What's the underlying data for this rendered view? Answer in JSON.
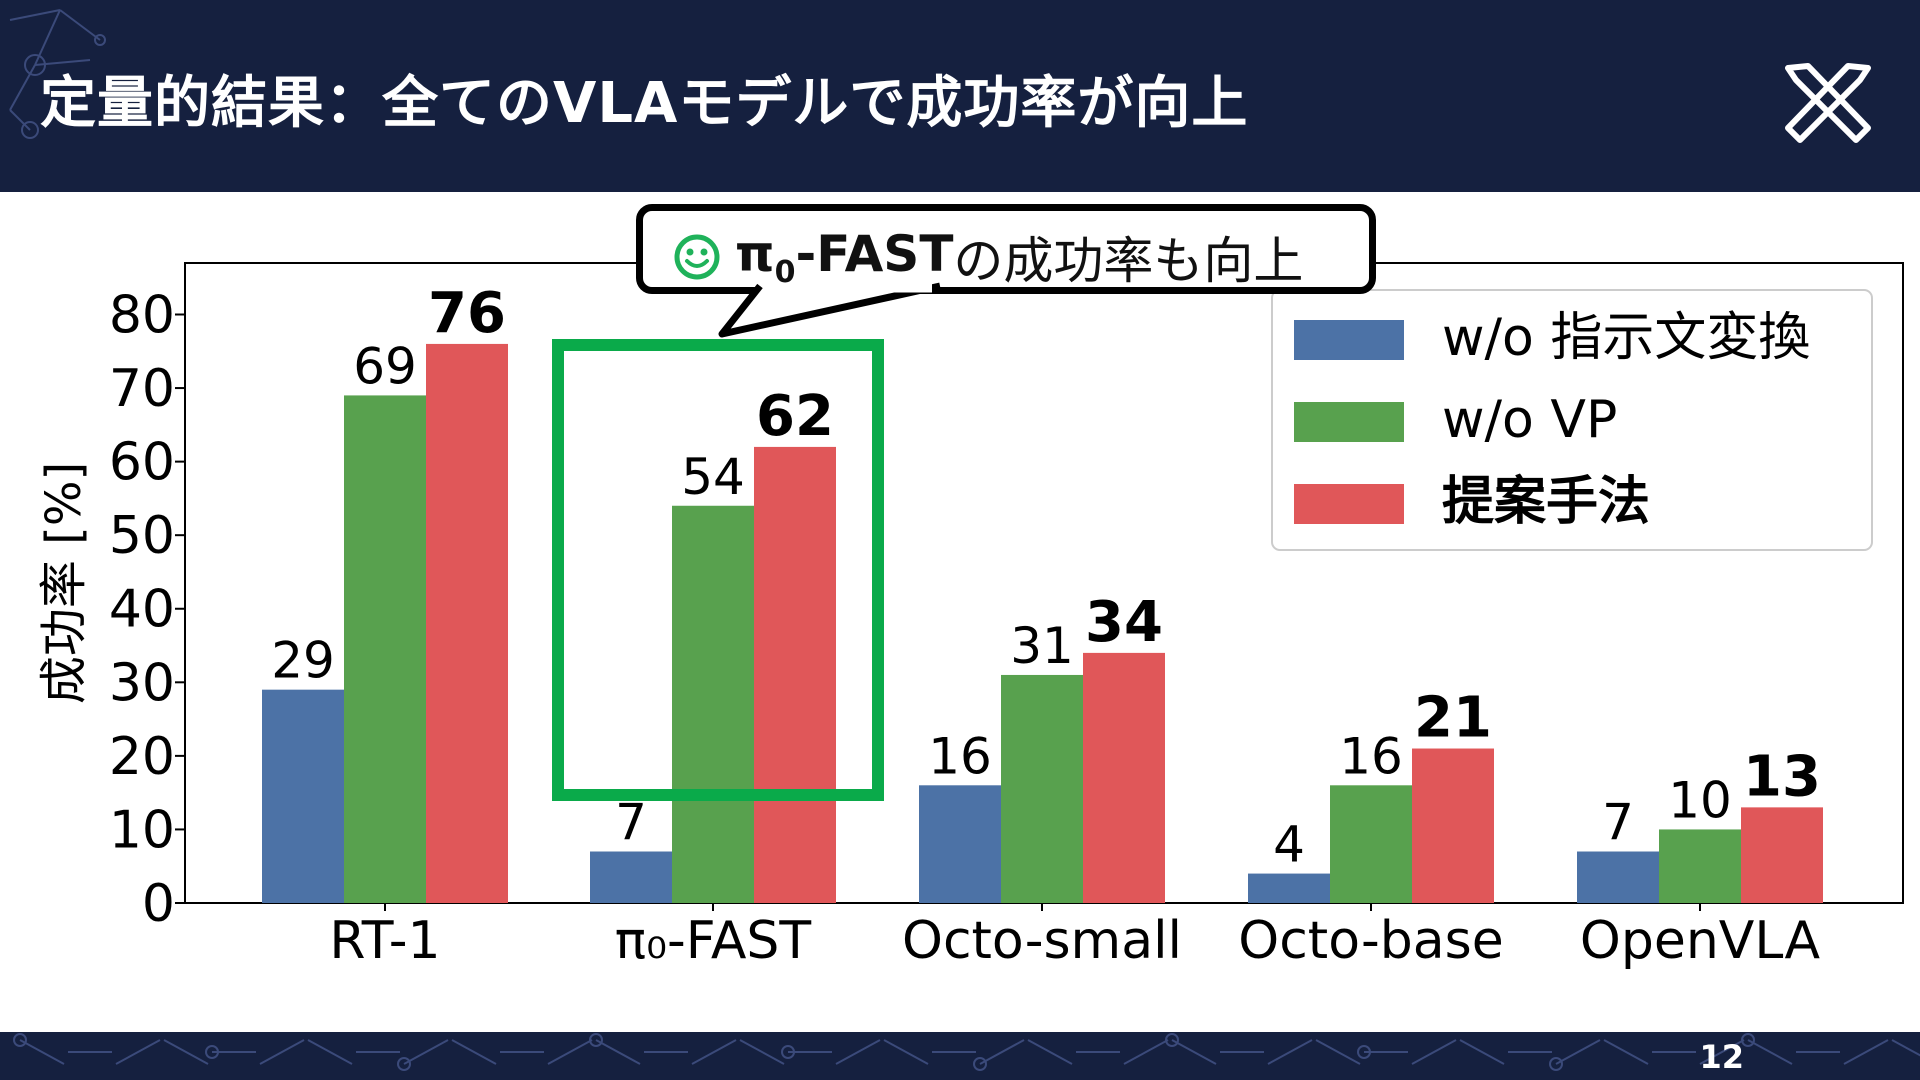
{
  "header": {
    "title": "定量的結果：全てのVLAモデルで成功率が向上"
  },
  "footer": {
    "page_number": "12"
  },
  "callout": {
    "emphasis": "π",
    "emphasis_sub": "0",
    "emphasis_suffix": "-FAST",
    "text": "の成功率も向上",
    "icon": "smiley-icon"
  },
  "colors": {
    "header_bg": "#15203f",
    "wo_instruction": "#4c72a6",
    "wo_vp": "#58a14e",
    "proposed": "#e05759",
    "highlight": "#0aaa4a"
  },
  "chart_data": {
    "type": "bar",
    "categories": [
      "RT-1",
      "π₀-FAST",
      "Octo-small",
      "Octo-base",
      "OpenVLA"
    ],
    "series": [
      {
        "name": "w/o 指示文変換",
        "values": [
          29,
          7,
          16,
          4,
          7
        ],
        "color": "#4c72a6"
      },
      {
        "name": "w/o VP",
        "values": [
          69,
          54,
          31,
          16,
          10
        ],
        "color": "#58a14e"
      },
      {
        "name": "提案手法",
        "values": [
          76,
          62,
          34,
          21,
          13
        ],
        "color": "#e05759",
        "bold_labels": true
      }
    ],
    "ylabel": "成功率 [%]",
    "ylim": [
      0,
      87
    ],
    "yticks": [
      0,
      10,
      20,
      30,
      40,
      50,
      60,
      70,
      80
    ],
    "legend": "top-right",
    "highlight_category": "π₀-FAST",
    "grid": false
  }
}
